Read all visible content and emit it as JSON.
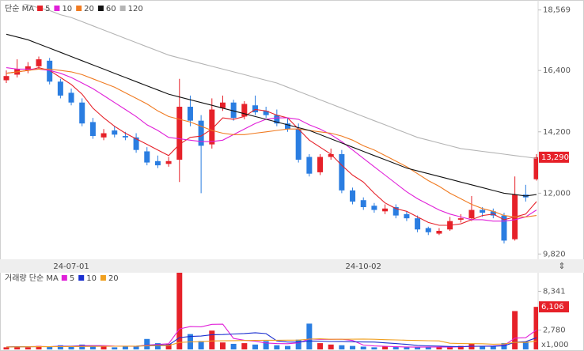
{
  "chart_data": [
    {
      "type": "candlestick",
      "legend_label": "단순 MA",
      "categories": [
        null,
        null,
        null,
        null,
        null,
        null,
        "24-07-01",
        null,
        null,
        null,
        null,
        null,
        null,
        null,
        null,
        null,
        null,
        null,
        null,
        null,
        null,
        null,
        null,
        null,
        null,
        null,
        null,
        null,
        null,
        null,
        null,
        null,
        null,
        "24-10-02",
        null,
        null,
        null,
        null,
        null,
        null,
        null,
        null,
        null,
        null,
        null,
        null,
        null,
        null,
        null,
        null
      ],
      "open": [
        16050,
        16250,
        16400,
        16550,
        16750,
        16000,
        15600,
        15250,
        14550,
        14000,
        14250,
        14050,
        14000,
        13500,
        13150,
        13050,
        13200,
        15100,
        14600,
        13750,
        15050,
        15250,
        14750,
        15150,
        14950,
        14800,
        14500,
        14300,
        13300,
        12750,
        13300,
        13400,
        12100,
        11750,
        11550,
        11350,
        11500,
        11250,
        11100,
        10750,
        10550,
        10700,
        11050,
        11100,
        11400,
        11350,
        11200,
        10350,
        11950,
        12500
      ],
      "high": [
        16400,
        16800,
        16700,
        16900,
        16850,
        16100,
        15750,
        15400,
        14700,
        14300,
        14400,
        14200,
        14150,
        13650,
        13350,
        13300,
        16100,
        15500,
        14800,
        15400,
        15500,
        15350,
        15300,
        15500,
        15100,
        15000,
        14700,
        14500,
        13400,
        13400,
        13600,
        13550,
        12200,
        11850,
        11650,
        11600,
        11600,
        11350,
        11200,
        10800,
        10750,
        11150,
        11250,
        11900,
        11500,
        11450,
        11300,
        12600,
        12300,
        13400
      ],
      "low": [
        15950,
        16150,
        16300,
        16450,
        15900,
        15400,
        15150,
        14400,
        13950,
        13900,
        14000,
        13900,
        13450,
        13000,
        12900,
        12950,
        12400,
        14400,
        12000,
        13600,
        14950,
        14600,
        14650,
        14800,
        14700,
        14400,
        14200,
        13100,
        12600,
        12650,
        13200,
        12000,
        11600,
        11400,
        11300,
        11250,
        11100,
        11000,
        10600,
        10500,
        10500,
        10650,
        10950,
        11000,
        11150,
        11100,
        10200,
        10300,
        11700,
        12450
      ],
      "close": [
        16200,
        16450,
        16550,
        16800,
        16000,
        15500,
        15250,
        14500,
        14050,
        14150,
        14100,
        14000,
        13550,
        13100,
        13000,
        13150,
        15100,
        14600,
        13700,
        15000,
        15250,
        14700,
        15200,
        14900,
        14800,
        14500,
        14300,
        13200,
        12700,
        13300,
        13400,
        12100,
        11700,
        11500,
        11400,
        11450,
        11200,
        11100,
        10700,
        10600,
        10650,
        11000,
        11100,
        11400,
        11300,
        11200,
        10300,
        11950,
        11850,
        13290
      ],
      "up_color": "#e62129",
      "down_color": "#2a7de1",
      "current_label": "13,290",
      "ma": [
        {
          "name": "5",
          "color": "#e62129",
          "values": [
            16300,
            16350,
            16400,
            16500,
            16400,
            16150,
            15900,
            15550,
            15050,
            14700,
            14400,
            14150,
            13950,
            13750,
            13550,
            13350,
            13750,
            14000,
            14050,
            14300,
            14700,
            14650,
            14750,
            15000,
            14950,
            14800,
            14700,
            14300,
            13900,
            13650,
            13400,
            13000,
            12650,
            12400,
            12000,
            11650,
            11450,
            11350,
            11150,
            10950,
            10850,
            10850,
            10900,
            11050,
            11200,
            11250,
            11050,
            11150,
            11250,
            11700
          ]
        },
        {
          "name": "10",
          "color": "#e020d8",
          "values": [
            16500,
            16450,
            16450,
            16450,
            16400,
            16300,
            16150,
            15950,
            15750,
            15500,
            15250,
            15000,
            14750,
            14450,
            14250,
            14000,
            13950,
            13900,
            13850,
            13850,
            13900,
            14100,
            14300,
            14500,
            14650,
            14700,
            14700,
            14650,
            14450,
            14300,
            14100,
            13850,
            13550,
            13250,
            12950,
            12650,
            12350,
            12050,
            11800,
            11600,
            11400,
            11250,
            11150,
            11050,
            11050,
            11000,
            11000,
            11050,
            11150,
            11400
          ]
        },
        {
          "name": "20",
          "color": "#f07b22",
          "values": [
            16300,
            16350,
            16400,
            16450,
            16450,
            16400,
            16350,
            16250,
            16100,
            15950,
            15800,
            15600,
            15400,
            15200,
            14950,
            14750,
            14650,
            14550,
            14400,
            14250,
            14150,
            14100,
            14100,
            14150,
            14200,
            14250,
            14300,
            14300,
            14250,
            14200,
            14150,
            14050,
            13900,
            13700,
            13550,
            13350,
            13150,
            12950,
            12700,
            12450,
            12250,
            12000,
            11800,
            11600,
            11450,
            11350,
            11200,
            11150,
            11150,
            11200
          ]
        },
        {
          "name": "60",
          "color": "#111111",
          "values": [
            17700,
            17600,
            17500,
            17350,
            17200,
            17050,
            16900,
            16750,
            16600,
            16450,
            16300,
            16150,
            16000,
            15850,
            15700,
            15550,
            15450,
            15350,
            15250,
            15150,
            15050,
            14950,
            14850,
            14750,
            14650,
            14550,
            14450,
            14350,
            14250,
            14100,
            13950,
            13800,
            13650,
            13500,
            13350,
            13200,
            13050,
            12900,
            12800,
            12700,
            12600,
            12500,
            12400,
            12300,
            12200,
            12100,
            12000,
            11950,
            11900,
            11950
          ]
        },
        {
          "name": "120",
          "color": "#b4b4b4",
          "values": [
            18950,
            18850,
            18750,
            18650,
            18550,
            18400,
            18300,
            18150,
            18000,
            17850,
            17700,
            17550,
            17400,
            17250,
            17100,
            16950,
            16850,
            16750,
            16650,
            16550,
            16450,
            16350,
            16250,
            16150,
            16050,
            15950,
            15800,
            15650,
            15500,
            15350,
            15200,
            15050,
            14900,
            14750,
            14600,
            14450,
            14300,
            14150,
            14000,
            13900,
            13800,
            13700,
            13600,
            13550,
            13500,
            13450,
            13400,
            13350,
            13300,
            13250
          ]
        }
      ],
      "ylim": [
        9630,
        18785
      ],
      "yticks": [
        {
          "value": 18569,
          "label": "18,569"
        },
        {
          "value": 16400,
          "label": "16,400"
        },
        {
          "value": 14200,
          "label": "14,200"
        },
        {
          "value": 12000,
          "label": "12,000"
        },
        {
          "value": 9820,
          "label": "9,820"
        }
      ]
    },
    {
      "type": "bar",
      "legend_label": "거래량 단순 MA",
      "unit_label": "x1,000",
      "values": [
        300,
        400,
        300,
        500,
        400,
        600,
        500,
        700,
        500,
        400,
        300,
        400,
        500,
        1500,
        900,
        800,
        11000,
        2200,
        1200,
        2700,
        1000,
        800,
        900,
        700,
        1200,
        600,
        500,
        1400,
        3700,
        900,
        700,
        600,
        500,
        400,
        300,
        400,
        350,
        300,
        300,
        400,
        350,
        300,
        500,
        800,
        400,
        500,
        900,
        5500,
        1100,
        6106
      ],
      "current_label": "6,106",
      "ma": [
        {
          "name": "5",
          "color": "#e020d8",
          "values": [
            350,
            400,
            380,
            420,
            400,
            460,
            460,
            540,
            540,
            540,
            480,
            460,
            440,
            620,
            720,
            820,
            2940,
            3280,
            3240,
            3600,
            3620,
            1580,
            1320,
            1180,
            920,
            840,
            820,
            940,
            1500,
            1440,
            1440,
            1460,
            1280,
            620,
            500,
            440,
            390,
            350,
            330,
            350,
            340,
            330,
            370,
            430,
            470,
            500,
            580,
            1620,
            1680,
            2800
          ]
        },
        {
          "name": "10",
          "color": "#1a2fd0",
          "values": [
            350,
            380,
            380,
            400,
            400,
            420,
            430,
            460,
            470,
            450,
            450,
            450,
            460,
            570,
            630,
            640,
            1690,
            1860,
            1920,
            2110,
            2130,
            2210,
            2280,
            2390,
            2270,
            1230,
            1060,
            1060,
            1210,
            1190,
            1130,
            1140,
            1100,
            1070,
            1050,
            940,
            840,
            730,
            560,
            510,
            480,
            420,
            400,
            450,
            450,
            470,
            520,
            1030,
            1110,
            1680
          ]
        },
        {
          "name": "20",
          "color": "#f0a020",
          "values": [
            350,
            360,
            370,
            380,
            390,
            400,
            410,
            420,
            430,
            440,
            450,
            460,
            470,
            520,
            540,
            560,
            1000,
            1080,
            1110,
            1210,
            1240,
            1260,
            1280,
            1290,
            1310,
            1320,
            1330,
            1340,
            1470,
            1520,
            1450,
            1450,
            1460,
            1480,
            1450,
            1400,
            1360,
            1320,
            1280,
            1250,
            1230,
            880,
            840,
            830,
            820,
            750,
            780,
            1020,
            1000,
            1200
          ]
        }
      ],
      "ylim": [
        0,
        11000
      ],
      "yticks": [
        {
          "value": 8341,
          "label": "8,341"
        },
        {
          "value": 2780,
          "label": "2,780"
        }
      ]
    }
  ]
}
